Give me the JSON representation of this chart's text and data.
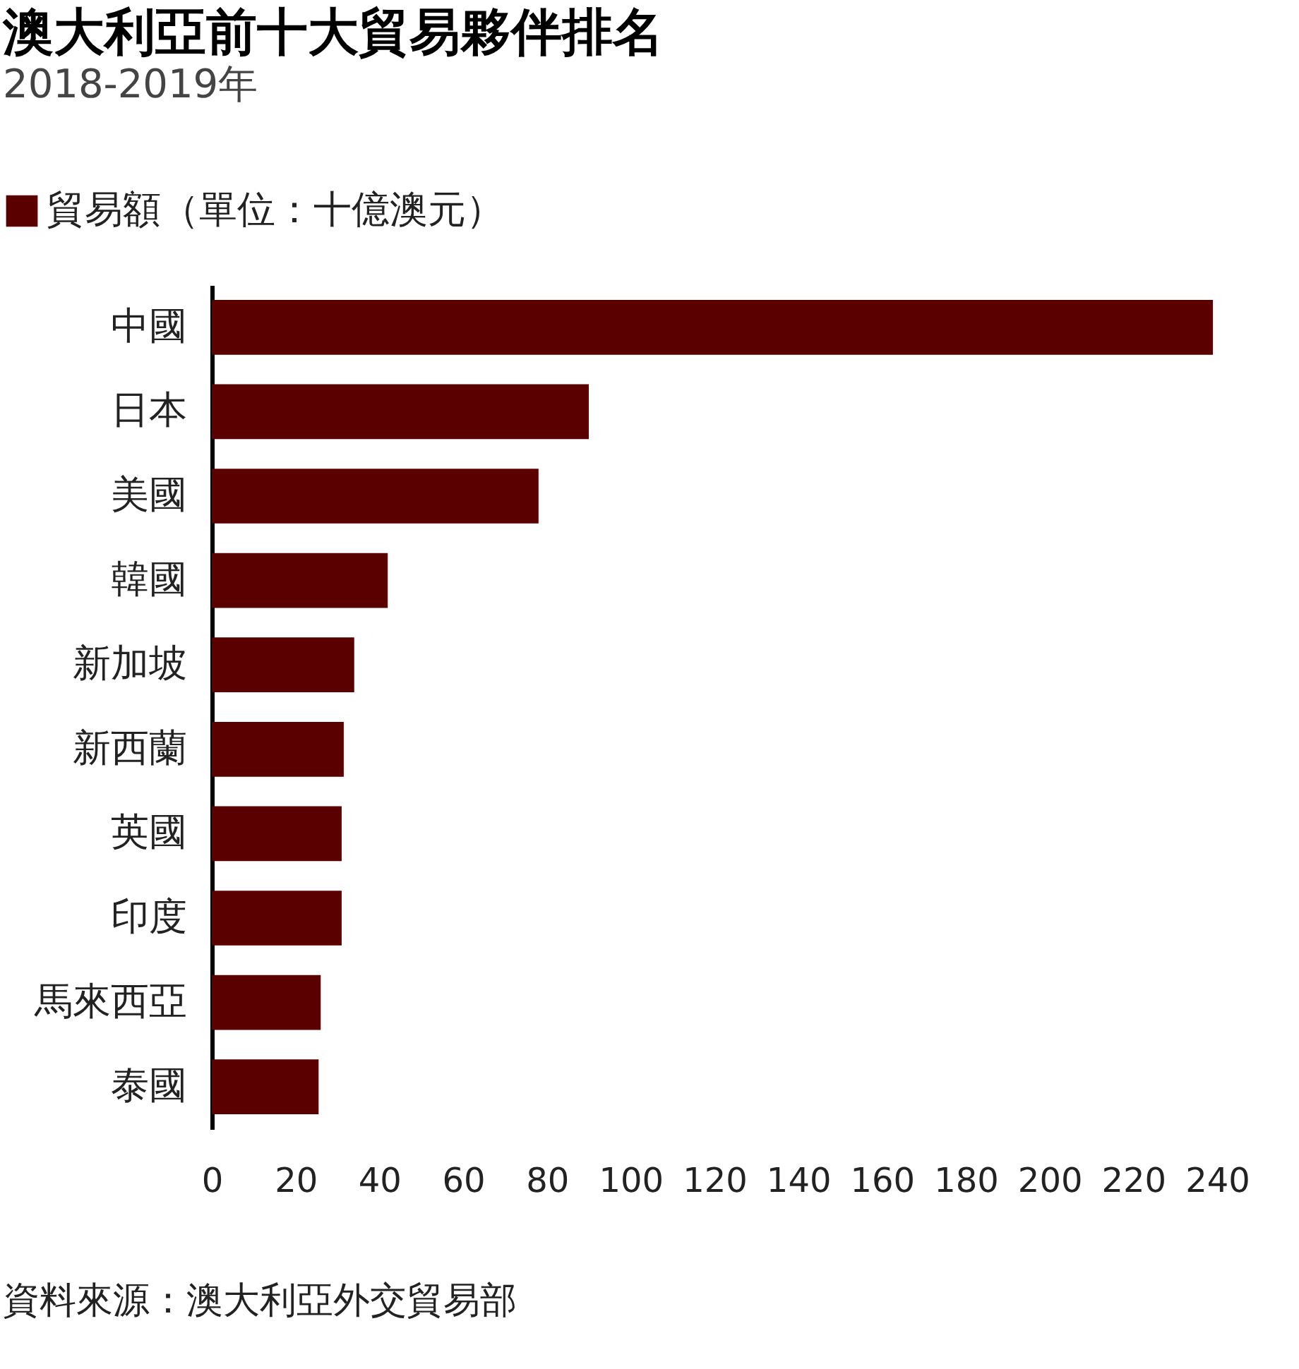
{
  "chart_data": {
    "type": "bar",
    "orientation": "horizontal",
    "title": "澳大利亞前十大貿易夥伴排名",
    "subtitle": "2018-2019年",
    "categories": [
      "中國",
      "日本",
      "美國",
      "韓國",
      "新加坡",
      "新西蘭",
      "英國",
      "印度",
      "馬來西亞",
      "泰國"
    ],
    "series": [
      {
        "name": "貿易額（單位：十億澳元）",
        "color": "#5a0000",
        "values": [
          239,
          90,
          78,
          42,
          34,
          31.5,
          31,
          31,
          26,
          25.5
        ]
      }
    ],
    "xlim": [
      0,
      240
    ],
    "xticks": [
      0,
      20,
      40,
      60,
      80,
      100,
      120,
      140,
      160,
      180,
      200,
      220,
      240
    ],
    "grid": false,
    "legend": "top left",
    "annotations": [
      "資料來源：澳大利亞外交貿易部"
    ]
  }
}
